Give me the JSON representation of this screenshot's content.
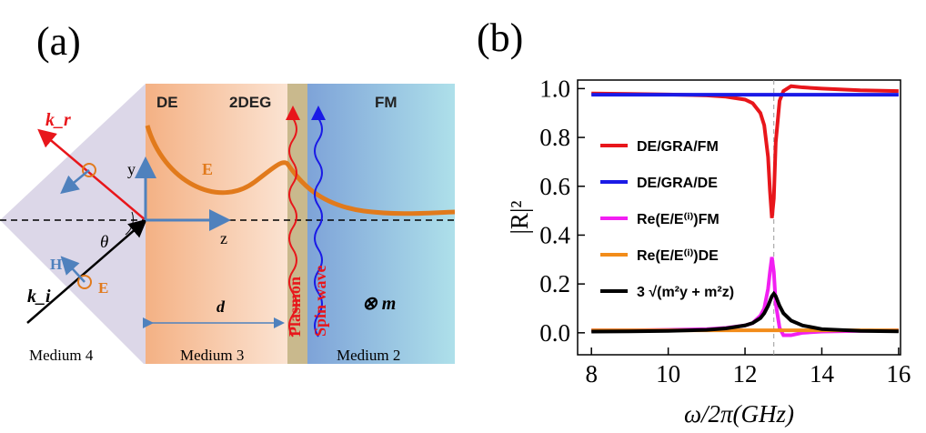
{
  "panel_a": {
    "label": "(a)",
    "regions": [
      "DE",
      "2DEG",
      "FM"
    ],
    "k_r": "k_r",
    "E_curve": "E",
    "y_axis": "y",
    "z_axis": "z",
    "theta": "θ",
    "H": "H",
    "E_incident": "E",
    "k_i": "k_i",
    "d": "d",
    "plasmon": "Plasmon",
    "spin_wave": "Spin wave",
    "magnetization": "⊗ m",
    "media": [
      "Medium 4",
      "Medium 3",
      "Medium 2"
    ]
  },
  "chart_data": {
    "type": "line",
    "label": "(b)",
    "x_label": "ω/2π(GHz)",
    "y_label": "|R|²",
    "x": [
      8,
      9,
      10,
      11,
      11.5,
      12,
      12.2,
      12.4,
      12.5,
      12.6,
      12.65,
      12.7,
      12.75,
      12.8,
      12.9,
      13,
      13.2,
      13.5,
      14,
      15,
      16
    ],
    "series": [
      {
        "name": "DE/GRA/FM",
        "color": "#e8161b",
        "values": [
          0.98,
          0.978,
          0.976,
          0.972,
          0.967,
          0.955,
          0.94,
          0.9,
          0.85,
          0.72,
          0.58,
          0.47,
          0.55,
          0.78,
          0.95,
          0.99,
          1.01,
          1.005,
          1.0,
          0.993,
          0.99
        ]
      },
      {
        "name": "DE/GRA/DE",
        "color": "#1a1ae6",
        "values": [
          0.975,
          0.975,
          0.975,
          0.975,
          0.975,
          0.975,
          0.975,
          0.975,
          0.975,
          0.975,
          0.975,
          0.975,
          0.975,
          0.975,
          0.975,
          0.975,
          0.975,
          0.975,
          0.975,
          0.975,
          0.975
        ]
      },
      {
        "name": "Re(E/E⁽ⁱ⁾)FM",
        "color": "#f21ff2",
        "values": [
          0.01,
          0.01,
          0.012,
          0.015,
          0.02,
          0.03,
          0.04,
          0.07,
          0.1,
          0.18,
          0.25,
          0.31,
          0.25,
          0.12,
          0.02,
          -0.01,
          -0.01,
          0,
          0.005,
          0.008,
          0.01
        ]
      },
      {
        "name": "Re(E/E⁽ⁱ⁾)DE",
        "color": "#f28c1a",
        "values": [
          0.01,
          0.01,
          0.01,
          0.01,
          0.01,
          0.01,
          0.01,
          0.01,
          0.01,
          0.01,
          0.01,
          0.01,
          0.01,
          0.01,
          0.01,
          0.01,
          0.01,
          0.01,
          0.01,
          0.01,
          0.01
        ]
      },
      {
        "name": "3 √(m²y + m²z)",
        "color": "#000000",
        "values": [
          0.005,
          0.006,
          0.008,
          0.012,
          0.018,
          0.03,
          0.04,
          0.06,
          0.08,
          0.11,
          0.13,
          0.15,
          0.16,
          0.15,
          0.11,
          0.08,
          0.05,
          0.03,
          0.015,
          0.008,
          0.006
        ]
      }
    ],
    "xlim": [
      7.64,
      16.05
    ],
    "ylim": [
      -0.09,
      1.035
    ],
    "xticks": [
      8,
      10,
      12,
      14,
      16
    ],
    "yticks": [
      {
        "value": 0,
        "label": "0.0"
      },
      0.2,
      0.4,
      0.6,
      0.8,
      {
        "value": 1,
        "label": "1.0"
      }
    ],
    "vline": 12.75
  }
}
